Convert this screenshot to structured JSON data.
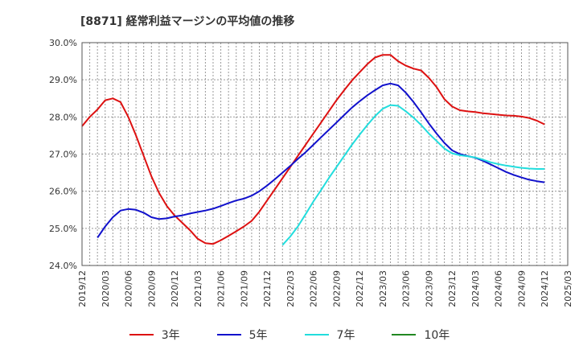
{
  "chart_data": {
    "type": "line",
    "title": "[8871]  経常利益マージンの平均値の推移",
    "y_ticks": [
      "24.0%",
      "25.0%",
      "26.0%",
      "27.0%",
      "28.0%",
      "29.0%",
      "30.0%"
    ],
    "ylim": [
      24.0,
      30.0
    ],
    "x_ticks": [
      "2019/12",
      "2020/03",
      "2020/06",
      "2020/09",
      "2020/12",
      "2021/03",
      "2021/06",
      "2021/09",
      "2021/12",
      "2022/03",
      "2022/06",
      "2022/09",
      "2022/12",
      "2023/03",
      "2023/06",
      "2023/09",
      "2023/12",
      "2024/03",
      "2024/06",
      "2024/09",
      "2024/12",
      "2025/03"
    ],
    "xlim": [
      "2019/12",
      "2025/03"
    ],
    "grid": true,
    "legend_position": "bottom",
    "series": [
      {
        "name": "3年",
        "color": "#dd1111",
        "points": [
          [
            "2019/12",
            27.75
          ],
          [
            "2020/01",
            28.0
          ],
          [
            "2020/02",
            28.2
          ],
          [
            "2020/03",
            28.45
          ],
          [
            "2020/04",
            28.5
          ],
          [
            "2020/05",
            28.4
          ],
          [
            "2020/06",
            28.0
          ],
          [
            "2020/07",
            27.5
          ],
          [
            "2020/08",
            26.95
          ],
          [
            "2020/09",
            26.4
          ],
          [
            "2020/10",
            25.95
          ],
          [
            "2020/11",
            25.6
          ],
          [
            "2020/12",
            25.35
          ],
          [
            "2021/01",
            25.15
          ],
          [
            "2021/02",
            24.95
          ],
          [
            "2021/03",
            24.72
          ],
          [
            "2021/04",
            24.6
          ],
          [
            "2021/05",
            24.58
          ],
          [
            "2021/06",
            24.68
          ],
          [
            "2021/07",
            24.8
          ],
          [
            "2021/08",
            24.92
          ],
          [
            "2021/09",
            25.05
          ],
          [
            "2021/10",
            25.2
          ],
          [
            "2021/11",
            25.45
          ],
          [
            "2021/12",
            25.75
          ],
          [
            "2022/01",
            26.05
          ],
          [
            "2022/02",
            26.35
          ],
          [
            "2022/03",
            26.65
          ],
          [
            "2022/04",
            26.95
          ],
          [
            "2022/05",
            27.25
          ],
          [
            "2022/06",
            27.55
          ],
          [
            "2022/07",
            27.85
          ],
          [
            "2022/08",
            28.15
          ],
          [
            "2022/09",
            28.45
          ],
          [
            "2022/10",
            28.72
          ],
          [
            "2022/11",
            28.98
          ],
          [
            "2022/12",
            29.2
          ],
          [
            "2023/01",
            29.42
          ],
          [
            "2023/02",
            29.6
          ],
          [
            "2023/03",
            29.67
          ],
          [
            "2023/04",
            29.67
          ],
          [
            "2023/05",
            29.5
          ],
          [
            "2023/06",
            29.38
          ],
          [
            "2023/07",
            29.3
          ],
          [
            "2023/08",
            29.25
          ],
          [
            "2023/09",
            29.05
          ],
          [
            "2023/10",
            28.8
          ],
          [
            "2023/11",
            28.48
          ],
          [
            "2023/12",
            28.28
          ],
          [
            "2024/01",
            28.18
          ],
          [
            "2024/02",
            28.15
          ],
          [
            "2024/03",
            28.13
          ],
          [
            "2024/04",
            28.1
          ],
          [
            "2024/05",
            28.08
          ],
          [
            "2024/06",
            28.06
          ],
          [
            "2024/07",
            28.04
          ],
          [
            "2024/08",
            28.03
          ],
          [
            "2024/09",
            28.01
          ],
          [
            "2024/10",
            27.97
          ],
          [
            "2024/11",
            27.9
          ],
          [
            "2024/12",
            27.8
          ]
        ]
      },
      {
        "name": "5年",
        "color": "#1111cc",
        "points": [
          [
            "2020/02",
            24.75
          ],
          [
            "2020/03",
            25.05
          ],
          [
            "2020/04",
            25.3
          ],
          [
            "2020/05",
            25.48
          ],
          [
            "2020/06",
            25.52
          ],
          [
            "2020/07",
            25.5
          ],
          [
            "2020/08",
            25.42
          ],
          [
            "2020/09",
            25.3
          ],
          [
            "2020/10",
            25.25
          ],
          [
            "2020/11",
            25.27
          ],
          [
            "2020/12",
            25.32
          ],
          [
            "2021/01",
            25.35
          ],
          [
            "2021/02",
            25.4
          ],
          [
            "2021/03",
            25.44
          ],
          [
            "2021/04",
            25.48
          ],
          [
            "2021/05",
            25.53
          ],
          [
            "2021/06",
            25.6
          ],
          [
            "2021/07",
            25.68
          ],
          [
            "2021/08",
            25.75
          ],
          [
            "2021/09",
            25.8
          ],
          [
            "2021/10",
            25.88
          ],
          [
            "2021/11",
            26.0
          ],
          [
            "2021/12",
            26.15
          ],
          [
            "2022/01",
            26.32
          ],
          [
            "2022/02",
            26.5
          ],
          [
            "2022/03",
            26.68
          ],
          [
            "2022/04",
            26.87
          ],
          [
            "2022/05",
            27.05
          ],
          [
            "2022/06",
            27.25
          ],
          [
            "2022/07",
            27.45
          ],
          [
            "2022/08",
            27.65
          ],
          [
            "2022/09",
            27.85
          ],
          [
            "2022/10",
            28.05
          ],
          [
            "2022/11",
            28.25
          ],
          [
            "2022/12",
            28.42
          ],
          [
            "2023/01",
            28.58
          ],
          [
            "2023/02",
            28.72
          ],
          [
            "2023/03",
            28.85
          ],
          [
            "2023/04",
            28.9
          ],
          [
            "2023/05",
            28.85
          ],
          [
            "2023/06",
            28.65
          ],
          [
            "2023/07",
            28.4
          ],
          [
            "2023/08",
            28.12
          ],
          [
            "2023/09",
            27.82
          ],
          [
            "2023/10",
            27.55
          ],
          [
            "2023/11",
            27.3
          ],
          [
            "2023/12",
            27.1
          ],
          [
            "2024/01",
            27.0
          ],
          [
            "2024/02",
            26.95
          ],
          [
            "2024/03",
            26.9
          ],
          [
            "2024/04",
            26.82
          ],
          [
            "2024/05",
            26.72
          ],
          [
            "2024/06",
            26.62
          ],
          [
            "2024/07",
            26.52
          ],
          [
            "2024/08",
            26.44
          ],
          [
            "2024/09",
            26.37
          ],
          [
            "2024/10",
            26.31
          ],
          [
            "2024/11",
            26.27
          ],
          [
            "2024/12",
            26.24
          ]
        ]
      },
      {
        "name": "7年",
        "color": "#22dddd",
        "points": [
          [
            "2022/02",
            24.55
          ],
          [
            "2022/03",
            24.78
          ],
          [
            "2022/04",
            25.05
          ],
          [
            "2022/05",
            25.38
          ],
          [
            "2022/06",
            25.72
          ],
          [
            "2022/07",
            26.03
          ],
          [
            "2022/08",
            26.35
          ],
          [
            "2022/09",
            26.65
          ],
          [
            "2022/10",
            26.95
          ],
          [
            "2022/11",
            27.25
          ],
          [
            "2022/12",
            27.52
          ],
          [
            "2023/01",
            27.78
          ],
          [
            "2023/02",
            28.02
          ],
          [
            "2023/03",
            28.22
          ],
          [
            "2023/04",
            28.32
          ],
          [
            "2023/05",
            28.3
          ],
          [
            "2023/06",
            28.15
          ],
          [
            "2023/07",
            27.98
          ],
          [
            "2023/08",
            27.78
          ],
          [
            "2023/09",
            27.55
          ],
          [
            "2023/10",
            27.35
          ],
          [
            "2023/11",
            27.15
          ],
          [
            "2023/12",
            27.02
          ],
          [
            "2024/01",
            26.97
          ],
          [
            "2024/02",
            26.94
          ],
          [
            "2024/03",
            26.91
          ],
          [
            "2024/04",
            26.85
          ],
          [
            "2024/05",
            26.78
          ],
          [
            "2024/06",
            26.73
          ],
          [
            "2024/07",
            26.69
          ],
          [
            "2024/08",
            26.66
          ],
          [
            "2024/09",
            26.63
          ],
          [
            "2024/10",
            26.61
          ],
          [
            "2024/11",
            26.6
          ],
          [
            "2024/12",
            26.6
          ]
        ]
      },
      {
        "name": "10年",
        "color": "#228822",
        "points": []
      }
    ]
  }
}
